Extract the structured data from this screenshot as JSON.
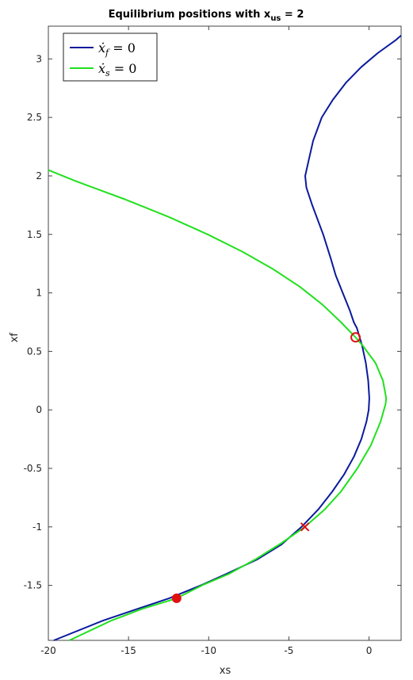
{
  "chart_data": {
    "type": "line",
    "title": "Equilibrium positions with x",
    "title_subscript": "us",
    "title_suffix": " = 2",
    "xlabel": "xs",
    "ylabel": "xf",
    "xlim": [
      -20,
      2
    ],
    "ylim": [
      -1.97,
      3.28
    ],
    "xticks": [
      -20,
      -15,
      -10,
      -5,
      0
    ],
    "yticks": [
      -1.5,
      -1,
      -0.5,
      0,
      0.5,
      1,
      1.5,
      2,
      2.5,
      3
    ],
    "grid": false,
    "legend_position": "top-left",
    "series": [
      {
        "name": "ẋ_f = 0",
        "legend_main": "ẋ",
        "legend_sub": "f",
        "legend_rest": " = 0",
        "color": "#0a1a9c",
        "x": [
          -19.66,
          -16.58,
          -14.41,
          -12.47,
          -10.49,
          -8.87,
          -7.0,
          -5.46,
          -4.21,
          -3.16,
          -2.3,
          -1.55,
          -0.94,
          -0.48,
          -0.16,
          -0.02,
          0.02,
          -0.05,
          -0.2,
          -0.43,
          -0.76,
          -0.95,
          -1.2,
          -1.64,
          -2.08,
          -2.4,
          -2.86,
          -3.54,
          -3.91,
          -3.98,
          -3.82,
          -3.49,
          -2.95,
          -2.26,
          -1.42,
          -0.49,
          0.54,
          1.66,
          2.0
        ],
        "y": [
          -1.97,
          -1.8,
          -1.7,
          -1.61,
          -1.5,
          -1.4,
          -1.28,
          -1.15,
          -1.0,
          -0.85,
          -0.7,
          -0.55,
          -0.4,
          -0.25,
          -0.1,
          0.0,
          0.1,
          0.25,
          0.4,
          0.55,
          0.7,
          0.75,
          0.85,
          1.0,
          1.15,
          1.3,
          1.5,
          1.75,
          1.9,
          2.0,
          2.1,
          2.3,
          2.5,
          2.65,
          2.8,
          2.93,
          3.05,
          3.16,
          3.2
        ]
      },
      {
        "name": "ẋ_s = 0",
        "legend_main": "ẋ",
        "legend_sub": "s",
        "legend_rest": " = 0",
        "color": "#22e01e",
        "x": [
          -18.69,
          -16.06,
          -14.12,
          -12.0,
          -10.42,
          -8.72,
          -7.0,
          -5.48,
          -4.0,
          -2.76,
          -1.76,
          -0.73,
          0.12,
          0.72,
          1.03,
          1.07,
          0.87,
          0.41,
          -0.4,
          -0.84,
          -1.75,
          -2.91,
          -4.29,
          -5.95,
          -7.87,
          -10.06,
          -12.51,
          -15.22,
          -18.19,
          -20.0
        ],
        "y": [
          -1.97,
          -1.8,
          -1.7,
          -1.61,
          -1.5,
          -1.4,
          -1.27,
          -1.14,
          -1.0,
          -0.85,
          -0.7,
          -0.5,
          -0.3,
          -0.1,
          0.05,
          0.1,
          0.25,
          0.4,
          0.55,
          0.62,
          0.75,
          0.9,
          1.05,
          1.2,
          1.35,
          1.5,
          1.65,
          1.8,
          1.95,
          2.05
        ]
      }
    ],
    "markers": [
      {
        "kind": "filled-circle",
        "x": -12.0,
        "y": -1.61,
        "color": "#e01010"
      },
      {
        "kind": "cross",
        "x": -4.0,
        "y": -1.0,
        "color": "#e01010"
      },
      {
        "kind": "open-circle",
        "x": -0.84,
        "y": 0.62,
        "color": "#e01010"
      }
    ]
  }
}
